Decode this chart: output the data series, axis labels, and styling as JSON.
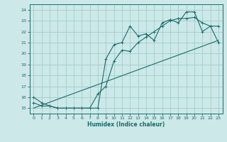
{
  "title": "",
  "xlabel": "Humidex (Indice chaleur)",
  "xlim": [
    -0.5,
    23.5
  ],
  "ylim": [
    14.5,
    24.5
  ],
  "xticks": [
    0,
    1,
    2,
    3,
    4,
    5,
    6,
    7,
    8,
    9,
    10,
    11,
    12,
    13,
    14,
    15,
    16,
    17,
    18,
    19,
    20,
    21,
    22,
    23
  ],
  "yticks": [
    15,
    16,
    17,
    18,
    19,
    20,
    21,
    22,
    23,
    24
  ],
  "bg_color": "#cde8e8",
  "grid_color": "#a0cccc",
  "line_color": "#1a6b6b",
  "line1_x": [
    0,
    1,
    2,
    3,
    4,
    5,
    6,
    7,
    8,
    9,
    10,
    11,
    12,
    13,
    14,
    15,
    16,
    17,
    18,
    19,
    20,
    21,
    22,
    23
  ],
  "line1_y": [
    16.0,
    15.5,
    15.2,
    15.0,
    15.0,
    15.0,
    15.0,
    15.0,
    15.0,
    19.5,
    20.8,
    21.0,
    22.5,
    21.6,
    21.8,
    21.2,
    22.8,
    23.1,
    22.8,
    23.8,
    23.8,
    22.0,
    22.5,
    22.5
  ],
  "line2_x": [
    0,
    1,
    2,
    3,
    4,
    5,
    6,
    7,
    8,
    9,
    10,
    11,
    12,
    13,
    14,
    15,
    16,
    17,
    18,
    19,
    20,
    21,
    22,
    23
  ],
  "line2_y": [
    15.5,
    15.2,
    15.2,
    15.0,
    15.0,
    15.0,
    15.0,
    15.0,
    16.3,
    17.0,
    19.3,
    20.3,
    20.2,
    21.0,
    21.5,
    22.0,
    22.5,
    23.0,
    23.2,
    23.2,
    23.3,
    22.8,
    22.5,
    21.0
  ],
  "line3_x": [
    0,
    23
  ],
  "line3_y": [
    15.0,
    21.2
  ]
}
